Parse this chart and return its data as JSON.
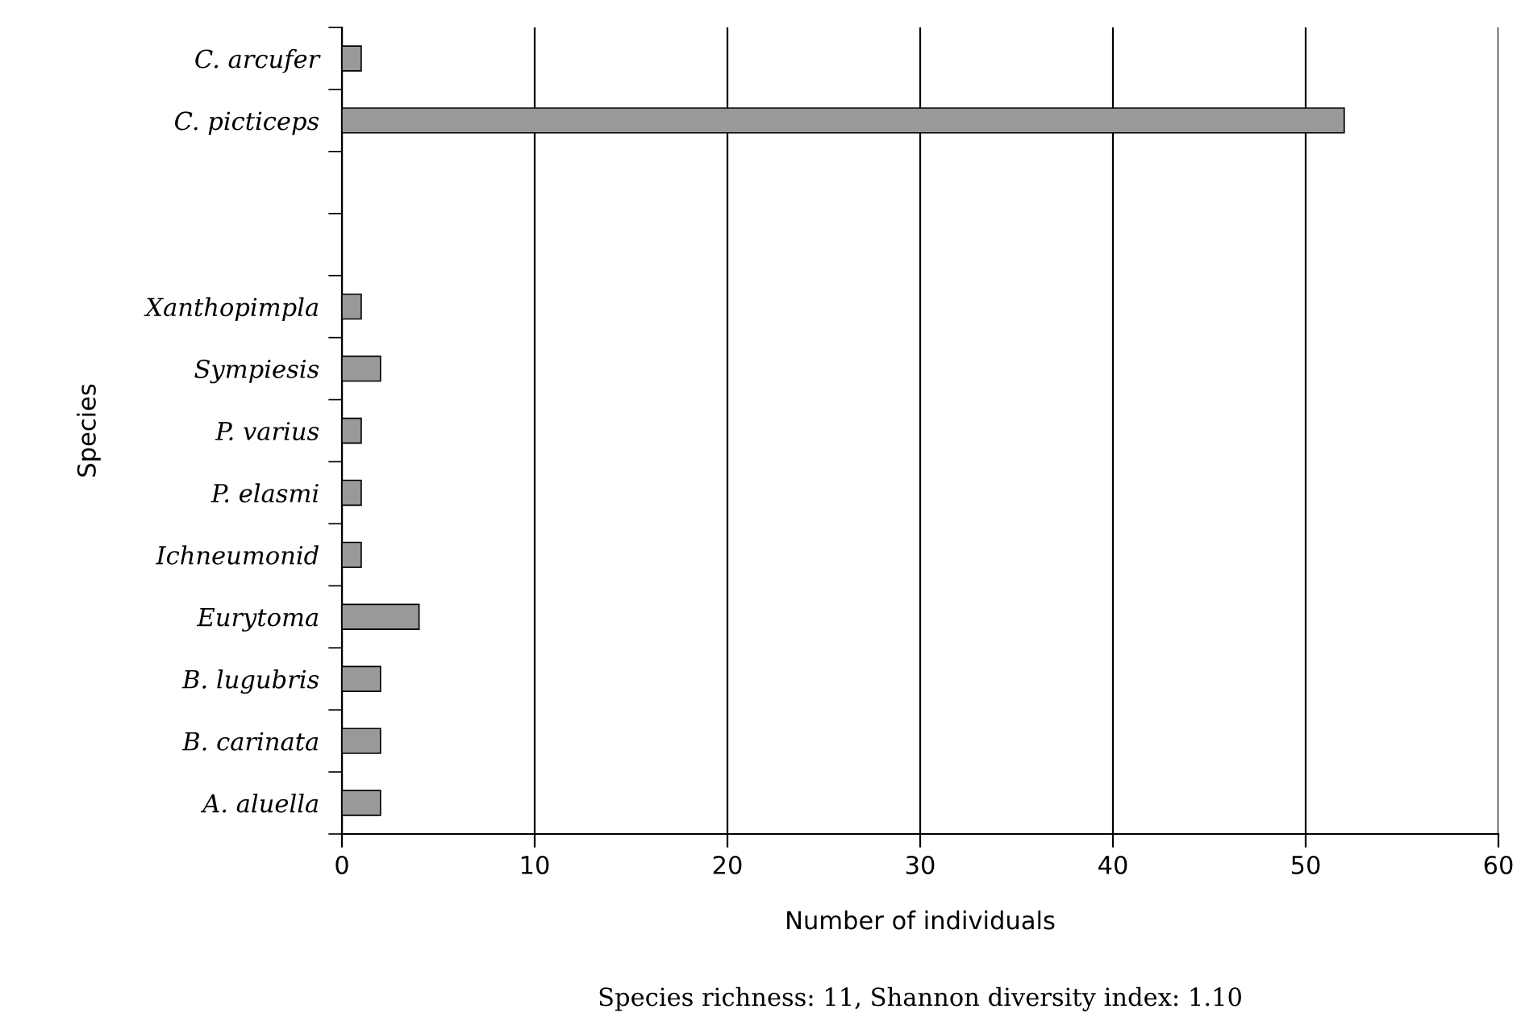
{
  "chart_data": {
    "type": "bar",
    "orientation": "horizontal",
    "categories": [
      "C. arcufer",
      "C. picticeps",
      null,
      null,
      "Xanthopimpla",
      "Sympiesis",
      "P. varius",
      "P. elasmi",
      "Ichneumonid",
      "Eurytoma",
      "B. lugubris",
      "B. carinata",
      "A. aluella"
    ],
    "values": [
      1,
      52,
      null,
      null,
      1,
      2,
      1,
      1,
      1,
      4,
      2,
      2,
      2
    ],
    "color": "#999999",
    "xlim": [
      0,
      60
    ],
    "xticks": [
      0,
      10,
      20,
      30,
      40,
      50,
      60
    ],
    "xlabel": "Number of individuals",
    "ylabel": "Species",
    "grid": "x",
    "annotations": [
      "Species richness: 11, Shannon diversity index: 1.10"
    ]
  }
}
